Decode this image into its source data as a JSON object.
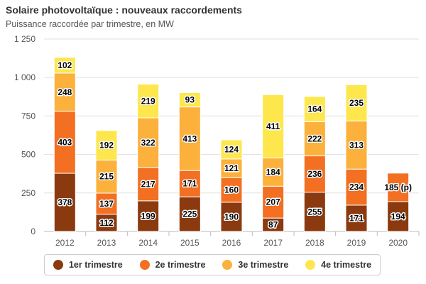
{
  "header": {
    "title": "Solaire photovoltaïque : nouveaux raccordements",
    "subtitle": "Puissance raccordée par trimestre, en MW"
  },
  "chart_data": {
    "type": "bar",
    "stacked": true,
    "title": "Solaire photovoltaïque : nouveaux raccordements",
    "subtitle": "Puissance raccordée par trimestre, en MW",
    "categories": [
      "2012",
      "2013",
      "2014",
      "2015",
      "2016",
      "2017",
      "2018",
      "2019",
      "2020"
    ],
    "ylim": [
      0,
      1250
    ],
    "yticks": [
      0,
      250,
      500,
      750,
      1000,
      1250
    ],
    "ytick_labels": [
      "0",
      "250",
      "500",
      "750",
      "1 000",
      "1 250"
    ],
    "grid": true,
    "legend_position": "bottom",
    "series": [
      {
        "name": "1er trimestre",
        "color": "#8b3a0f",
        "values": [
          378,
          112,
          199,
          225,
          190,
          87,
          255,
          171,
          194
        ],
        "labels": [
          "378",
          "112",
          "199",
          "225",
          "190",
          "87",
          "255",
          "171",
          "194"
        ]
      },
      {
        "name": "2e trimestre",
        "color": "#f36f21",
        "values": [
          403,
          137,
          217,
          171,
          160,
          207,
          236,
          234,
          185
        ],
        "labels": [
          "403",
          "137",
          "217",
          "171",
          "160",
          "207",
          "236",
          "234",
          "185 (p)"
        ]
      },
      {
        "name": "3e trimestre",
        "color": "#fbb13c",
        "values": [
          248,
          215,
          322,
          413,
          121,
          184,
          222,
          313,
          null
        ],
        "labels": [
          "248",
          "215",
          "322",
          "413",
          "121",
          "184",
          "222",
          "313",
          ""
        ]
      },
      {
        "name": "4e trimestre",
        "color": "#fde74c",
        "values": [
          102,
          192,
          219,
          93,
          124,
          411,
          164,
          235,
          null
        ],
        "labels": [
          "102",
          "192",
          "219",
          "93",
          "124",
          "411",
          "164",
          "235",
          ""
        ]
      }
    ]
  }
}
